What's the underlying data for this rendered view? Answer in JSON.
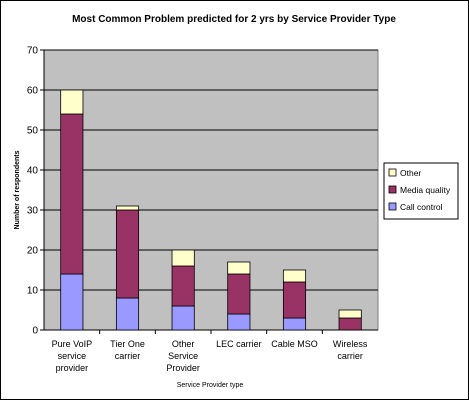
{
  "chart_data": {
    "type": "bar",
    "stacked": true,
    "title": "Most Common Problem predicted for 2 yrs by Service Provider Type",
    "xlabel": "Service Provider type",
    "ylabel": "Number of respondents",
    "ylim": [
      0,
      70
    ],
    "yticks": [
      0,
      10,
      20,
      30,
      40,
      50,
      60,
      70
    ],
    "grid": true,
    "legend_position": "right",
    "categories": [
      [
        "Pure VoIP",
        "service",
        "provider"
      ],
      [
        "Tier One",
        "carrier"
      ],
      [
        "Other",
        "Service",
        "Provider"
      ],
      [
        "LEC carrier"
      ],
      [
        "Cable MSO"
      ],
      [
        "Wireless",
        "carrier"
      ]
    ],
    "series": [
      {
        "name": "Call control",
        "color": "#9999ff",
        "values": [
          14,
          8,
          6,
          4,
          3,
          0
        ]
      },
      {
        "name": "Media quality",
        "color": "#993366",
        "values": [
          40,
          22,
          10,
          10,
          9,
          3
        ]
      },
      {
        "name": "Other",
        "color": "#ffffcc",
        "values": [
          6,
          1,
          4,
          3,
          3,
          2
        ]
      }
    ],
    "plot_background": "#c0c0c0",
    "legend_order": [
      "Other",
      "Media quality",
      "Call control"
    ]
  }
}
